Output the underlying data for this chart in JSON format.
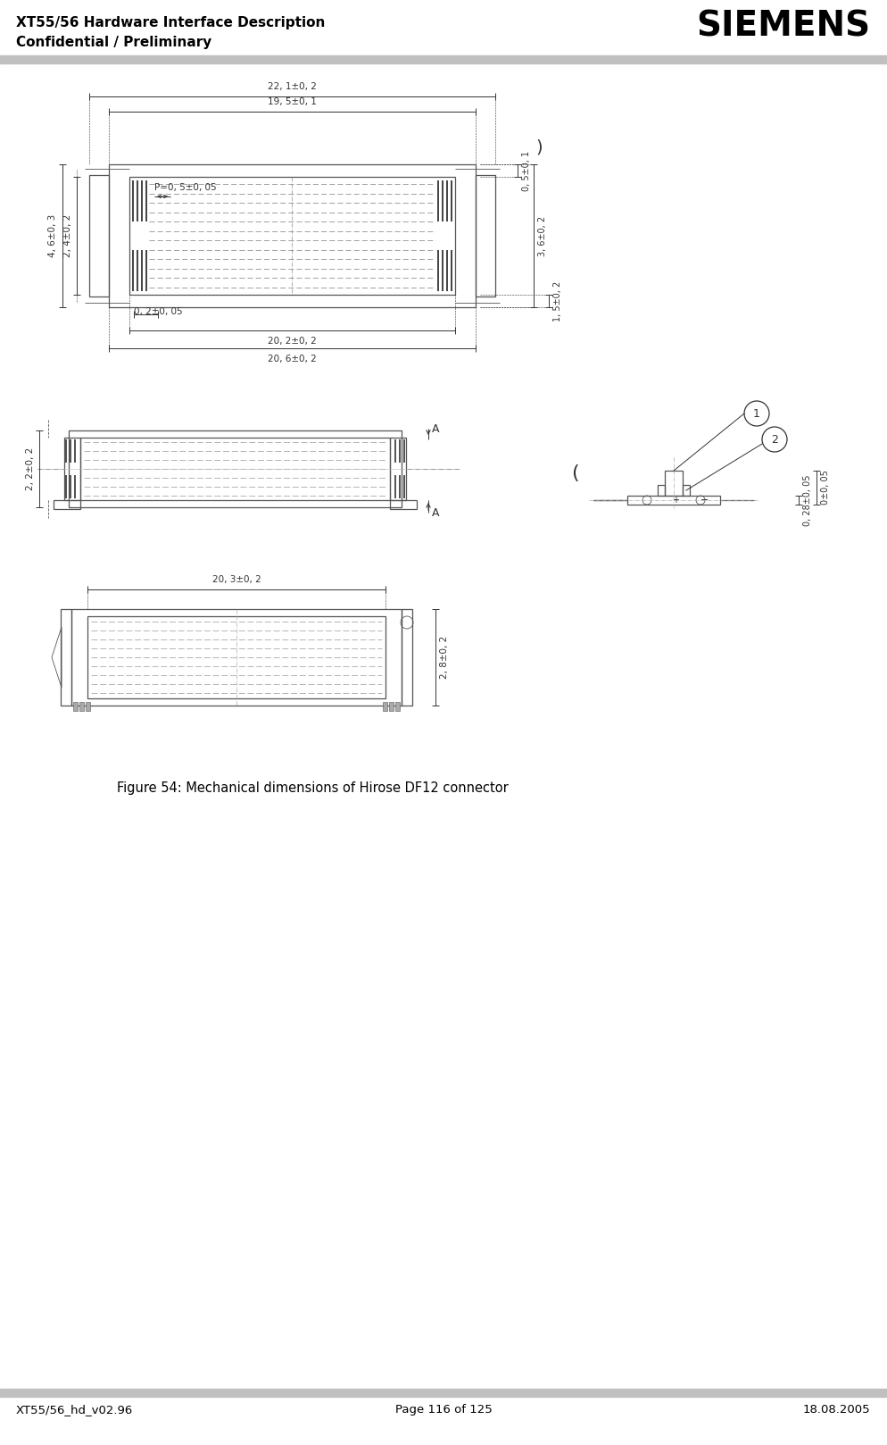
{
  "title_left_line1": "XT55/56 Hardware Interface Description",
  "title_left_line2": "Confidential / Preliminary",
  "title_right": "SIEMENS",
  "footer_left": "XT55/56_hd_v02.96",
  "footer_center": "Page 116 of 125",
  "footer_right": "18.08.2005",
  "caption": "Figure 54: Mechanical dimensions of Hirose DF12 connector",
  "bg_color": "#ffffff",
  "header_line_color": "#c0c0c0",
  "footer_line_color": "#c0c0c0",
  "text_color": "#000000",
  "draw_color": "#555555",
  "dim_color": "#333333"
}
